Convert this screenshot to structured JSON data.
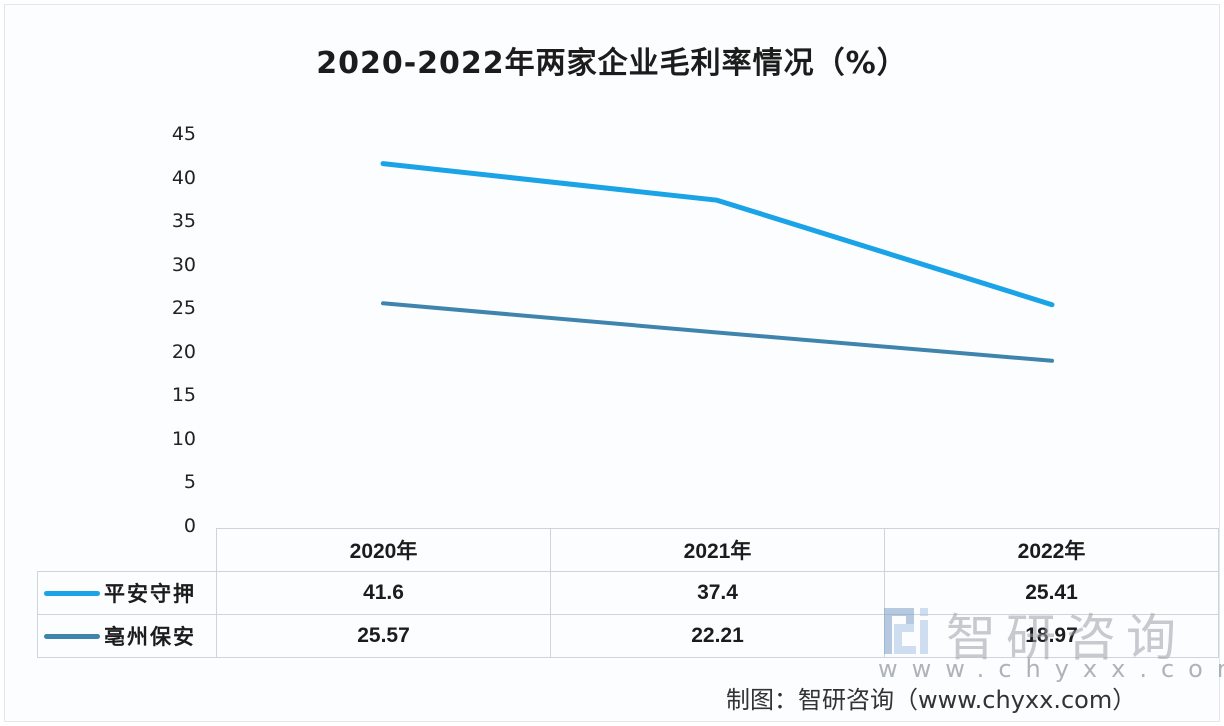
{
  "chart_data": {
    "type": "line",
    "title": "2020-2022年两家企业毛利率情况（%）",
    "categories": [
      "2020年",
      "2021年",
      "2022年"
    ],
    "series": [
      {
        "name": "平安守押",
        "values": [
          41.6,
          37.4,
          25.41
        ],
        "color": "#1aa3e6"
      },
      {
        "name": "亳州保安",
        "values": [
          25.57,
          22.21,
          18.97
        ],
        "color": "#3f84ad"
      }
    ],
    "xlabel": "",
    "ylabel": "",
    "ylim": [
      0,
      45
    ],
    "yticks": [
      0,
      5,
      10,
      15,
      20,
      25,
      30,
      35,
      40,
      45
    ],
    "grid": false,
    "legend_position": "data-table-left"
  },
  "title": "2020-2022年两家企业毛利率情况（%）",
  "yaxis": {
    "ticks": [
      "45",
      "40",
      "35",
      "30",
      "25",
      "20",
      "15",
      "10",
      "5",
      "0"
    ]
  },
  "table": {
    "headers": [
      "2020年",
      "2021年",
      "2022年"
    ],
    "rows": [
      {
        "label": "平安守押",
        "values": [
          "41.6",
          "37.4",
          "25.41"
        ]
      },
      {
        "label": "亳州保安",
        "values": [
          "25.57",
          "22.21",
          "18.97"
        ]
      }
    ]
  },
  "watermark": {
    "name": "智研咨询",
    "url": "www.chyxx.com"
  },
  "source": "制图：智研咨询（www.chyxx.com）"
}
